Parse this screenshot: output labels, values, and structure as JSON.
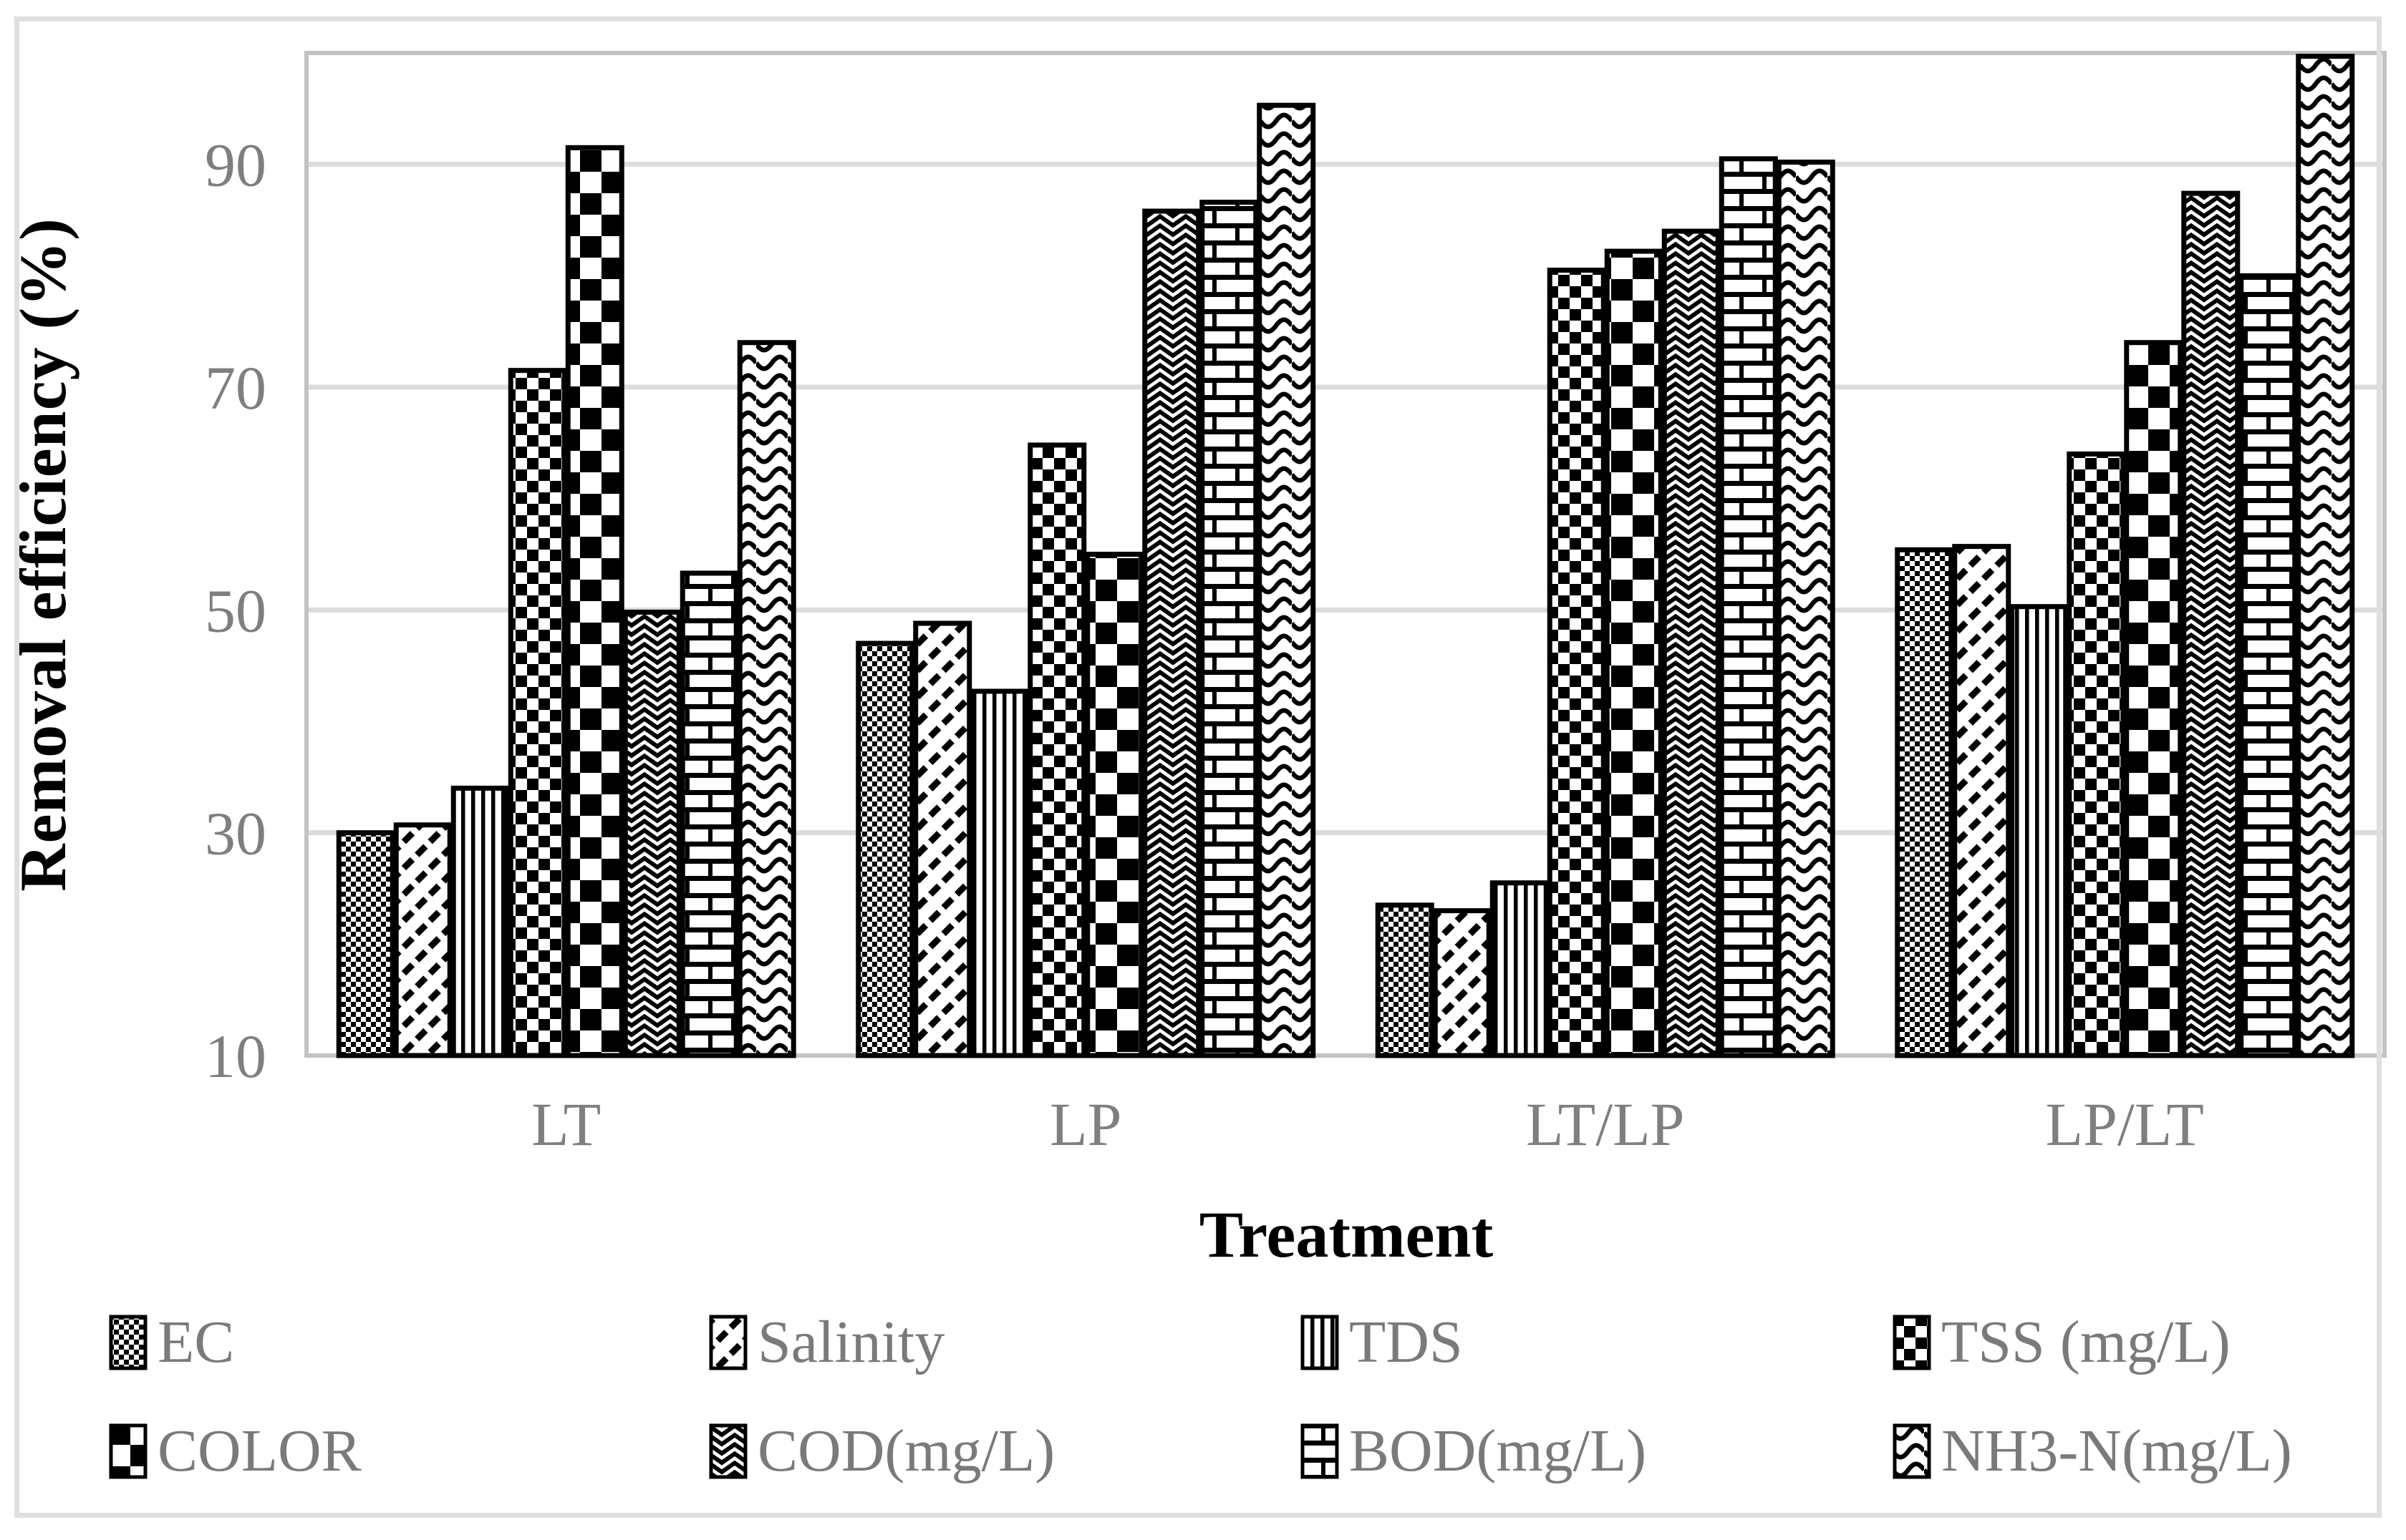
{
  "figure": {
    "background": "#ffffff",
    "outer_border_color": "#dfdfdf"
  },
  "chart_data": {
    "type": "bar",
    "title": "",
    "xlabel": "Treatment",
    "ylabel": "Removal efficiency (%)",
    "categories": [
      "LT",
      "LP",
      "LT/LP",
      "LP/LT"
    ],
    "series": [
      {
        "name": "EC",
        "pattern": "ec",
        "values": [
          30.0,
          47.0,
          23.5,
          55.4
        ]
      },
      {
        "name": "Salinity",
        "pattern": "salinity",
        "values": [
          30.7,
          48.8,
          23.0,
          55.7
        ]
      },
      {
        "name": "TDS",
        "pattern": "tds",
        "values": [
          34.0,
          42.7,
          25.5,
          50.3
        ]
      },
      {
        "name": "TSS (mg/L)",
        "pattern": "tss",
        "values": [
          71.5,
          64.8,
          80.5,
          64.0
        ]
      },
      {
        "name": "COLOR",
        "pattern": "color",
        "values": [
          91.5,
          55.0,
          82.2,
          74.0
        ]
      },
      {
        "name": "COD(mg/L)",
        "pattern": "cod",
        "values": [
          49.8,
          85.8,
          84.0,
          87.4
        ]
      },
      {
        "name": "BOD(mg/L)",
        "pattern": "bod",
        "values": [
          53.3,
          86.6,
          90.5,
          80.0
        ]
      },
      {
        "name": "NH3-N(mg/L)",
        "pattern": "nh3",
        "values": [
          74.0,
          95.3,
          90.2,
          99.7
        ]
      }
    ],
    "y_ticks": [
      10,
      30,
      50,
      70,
      90
    ],
    "ylim": [
      10,
      100
    ],
    "grid": true,
    "legend_position": "bottom",
    "legend_rows": 2,
    "colors": {
      "bar_foreground": "#000000",
      "bar_background": "#ffffff",
      "bar_stroke": "#000000",
      "gridline": "#dcdcdc",
      "plot_frame": "#c3c3c3",
      "tick_label": "#7f7f7f",
      "legend_text": "#7a7a7a",
      "axis_title": "#000000"
    }
  }
}
